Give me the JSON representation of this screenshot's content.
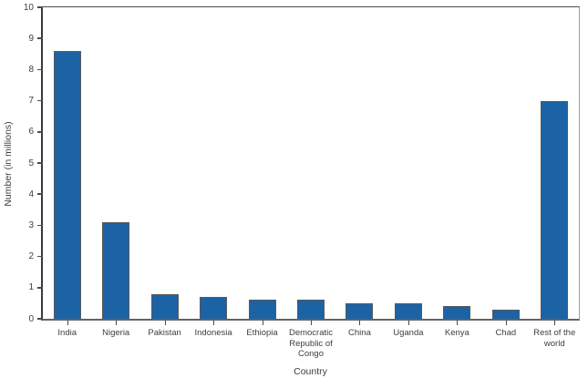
{
  "chart_data": {
    "type": "bar",
    "title": "",
    "xlabel": "Country",
    "ylabel": "Number (in millions)",
    "ylim": [
      0,
      10
    ],
    "ytick_step": 1,
    "yticks": [
      0,
      1,
      2,
      3,
      4,
      5,
      6,
      7,
      8,
      9,
      10
    ],
    "grid": false,
    "legend_position": "none",
    "categories": [
      "India",
      "Nigeria",
      "Pakistan",
      "Indonesia",
      "Ethiopia",
      "Democratic\nRepublic of\nCongo",
      "China",
      "Uganda",
      "Kenya",
      "Chad",
      "Rest of the\nworld"
    ],
    "values": [
      8.6,
      3.1,
      0.8,
      0.7,
      0.6,
      0.6,
      0.5,
      0.5,
      0.4,
      0.3,
      7.0
    ],
    "bar_color": "#1C63A6",
    "bar_border_color": "#58595B",
    "axis_text_color": "#3E3E3E"
  }
}
